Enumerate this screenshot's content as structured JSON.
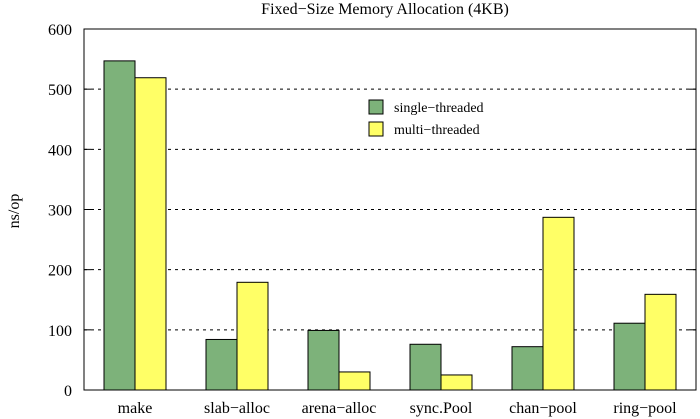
{
  "chart_data": {
    "type": "bar",
    "title": "Fixed−Size Memory Allocation (4KB)",
    "xlabel": "",
    "ylabel": "ns/op",
    "ylim": [
      0,
      600
    ],
    "yticks": [
      0,
      100,
      200,
      300,
      400,
      500,
      600
    ],
    "categories": [
      "make",
      "slab−alloc",
      "arena−alloc",
      "sync.Pool",
      "chan−pool",
      "ring−pool"
    ],
    "series": [
      {
        "name": "single−threaded",
        "color": "#7db27a",
        "values": [
          547,
          84,
          99,
          76,
          72,
          111
        ]
      },
      {
        "name": "multi−threaded",
        "color": "#ffff66",
        "values": [
          519,
          179,
          30,
          25,
          287,
          159
        ]
      }
    ],
    "grid": true,
    "legend_position": "upper-right-center"
  }
}
